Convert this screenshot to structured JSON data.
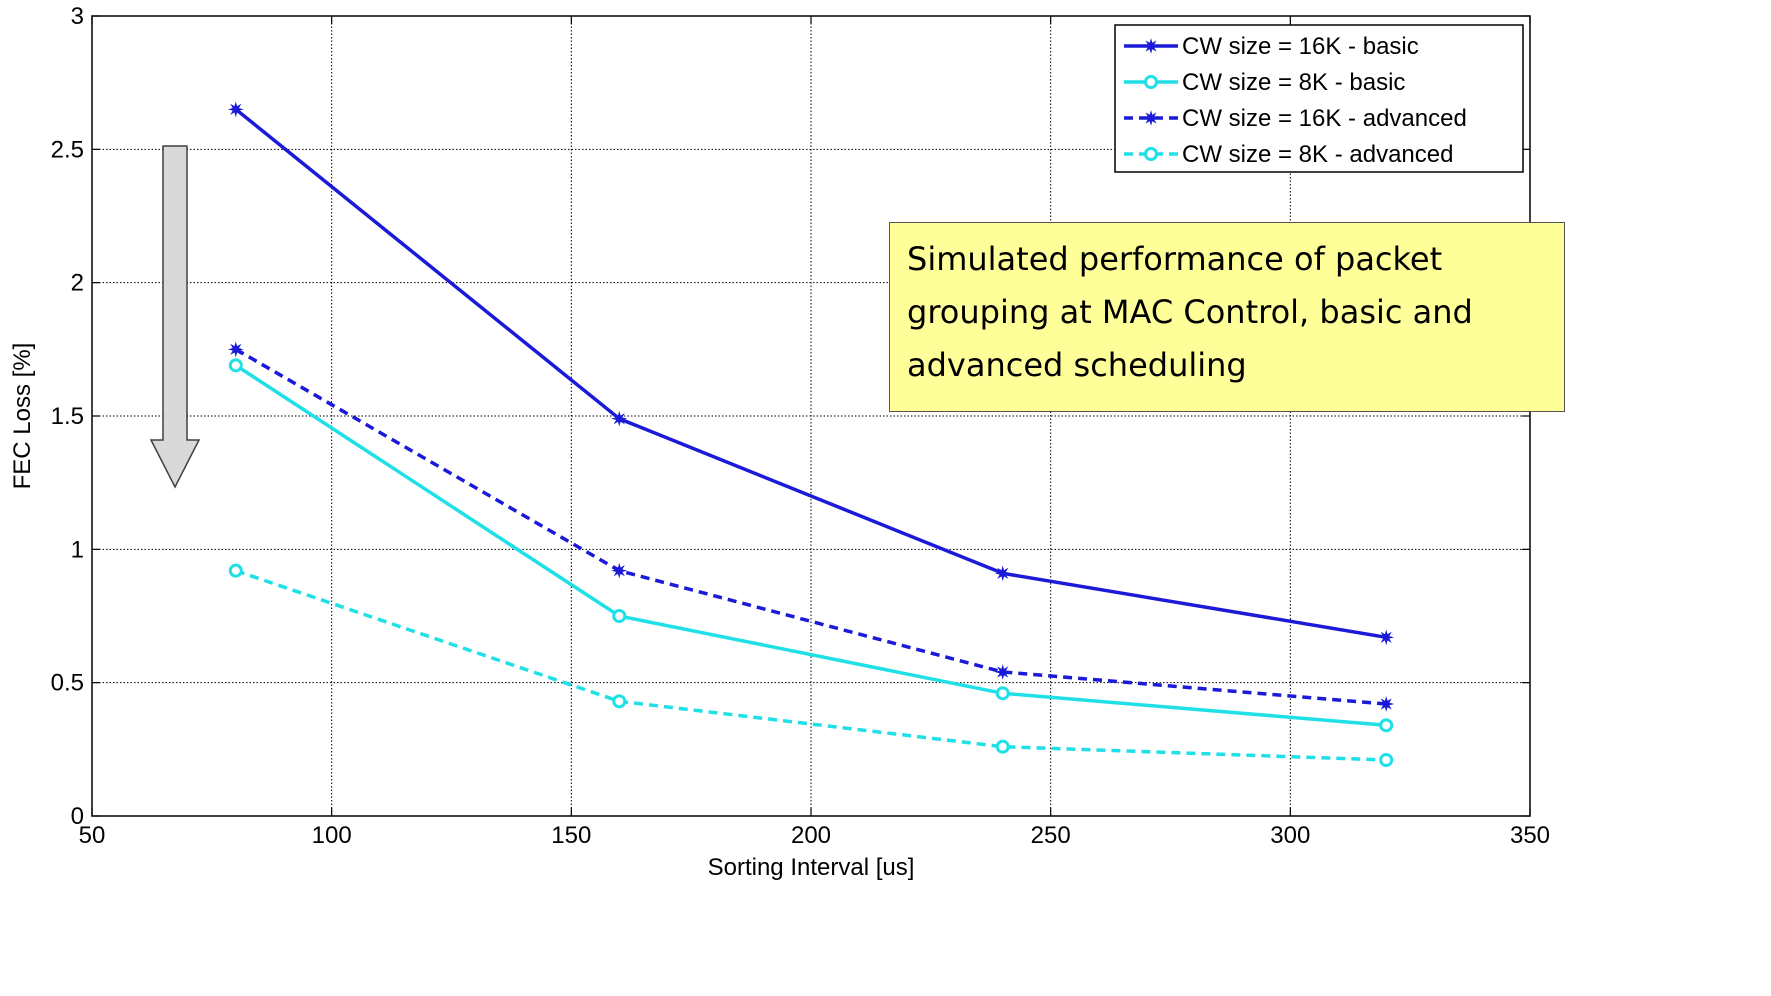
{
  "chart_data": {
    "type": "line",
    "title": "",
    "xlabel": "Sorting Interval [us]",
    "ylabel": "FEC Loss [%]",
    "xlim": [
      50,
      350
    ],
    "ylim": [
      0,
      3
    ],
    "xticks": [
      50,
      100,
      150,
      200,
      250,
      300,
      350
    ],
    "yticks": [
      0,
      0.5,
      1,
      1.5,
      2,
      2.5,
      3
    ],
    "grid": true,
    "legend_position": "top-right",
    "x": [
      80,
      160,
      240,
      320
    ],
    "series": [
      {
        "name": "CW size = 16K - basic",
        "values": [
          2.65,
          1.49,
          0.91,
          0.67
        ],
        "color": "#1a1ad8",
        "dash": "solid",
        "marker": "star"
      },
      {
        "name": "CW size = 8K - basic",
        "values": [
          1.69,
          0.75,
          0.46,
          0.34
        ],
        "color": "#1ee0e6",
        "dash": "solid",
        "marker": "circle"
      },
      {
        "name": "CW size = 16K - advanced",
        "values": [
          1.75,
          0.92,
          0.54,
          0.42
        ],
        "color": "#1a1ad8",
        "dash": "dashed",
        "marker": "star"
      },
      {
        "name": "CW size = 8K - advanced",
        "values": [
          0.92,
          0.43,
          0.26,
          0.21
        ],
        "color": "#1ee0e6",
        "dash": "dashed",
        "marker": "circle"
      }
    ],
    "annotation": "Simulated performance of packet grouping at MAC Control, basic and advanced scheduling",
    "arrow_direction": "down"
  }
}
